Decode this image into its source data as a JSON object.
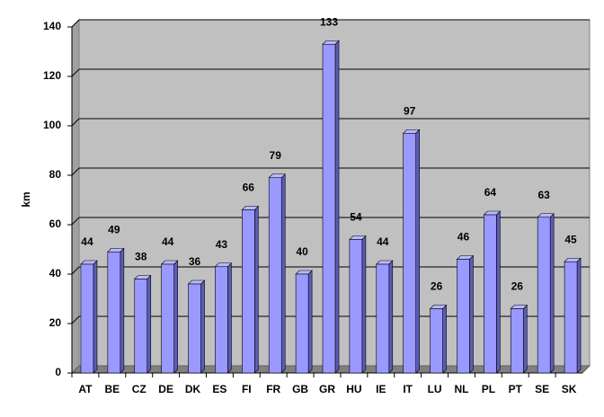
{
  "chart_data": {
    "type": "bar3d",
    "y_label": "km",
    "categories": [
      "AT",
      "BE",
      "CZ",
      "DE",
      "DK",
      "ES",
      "FI",
      "FR",
      "GB",
      "GR",
      "HU",
      "IE",
      "IT",
      "LU",
      "NL",
      "PL",
      "PT",
      "SE",
      "SK"
    ],
    "values": [
      44,
      49,
      38,
      44,
      36,
      43,
      66,
      79,
      40,
      133,
      54,
      44,
      97,
      26,
      46,
      64,
      26,
      63,
      45
    ],
    "color": "#9999ff",
    "ylim": [
      0,
      140
    ],
    "yticks": [
      0,
      20,
      40,
      60,
      80,
      100,
      120,
      140
    ],
    "grid": true
  }
}
